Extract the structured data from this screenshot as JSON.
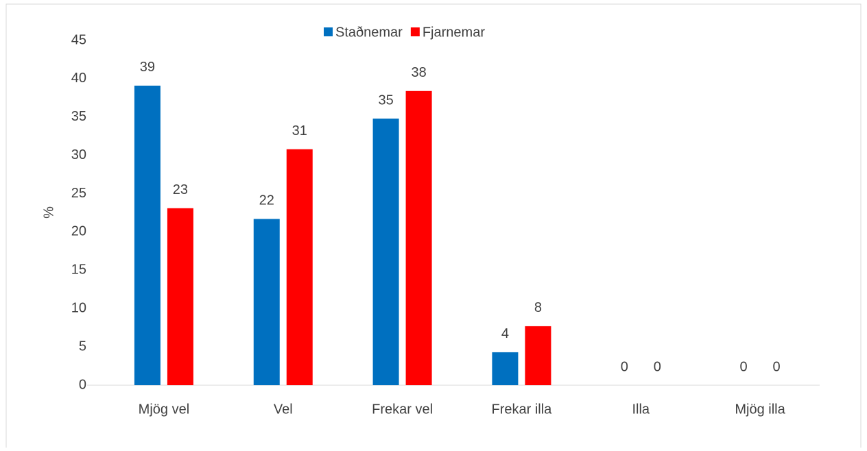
{
  "chart_data": {
    "type": "bar",
    "y_label": "%",
    "categories": [
      "Mjög vel",
      "Vel",
      "Frekar vel",
      "Frekar illa",
      "Illa",
      "Mjög illa"
    ],
    "series": [
      {
        "name": "Staðnemar",
        "color": "#0070c0",
        "values": [
          39.1,
          21.7,
          34.8,
          4.3,
          0,
          0
        ],
        "value_labels": [
          "39",
          "22",
          "35",
          "4",
          "0",
          "0"
        ]
      },
      {
        "name": "Fjarnemar",
        "color": "#ff0000",
        "values": [
          23.1,
          30.8,
          38.4,
          7.7,
          0,
          0
        ],
        "value_labels": [
          "23",
          "31",
          "38",
          "8",
          "0",
          "0"
        ]
      }
    ],
    "ylim": [
      0,
      45
    ],
    "yticks": [
      0,
      5,
      10,
      15,
      20,
      25,
      30,
      35,
      40,
      45
    ],
    "grid": false,
    "legend": "top"
  }
}
